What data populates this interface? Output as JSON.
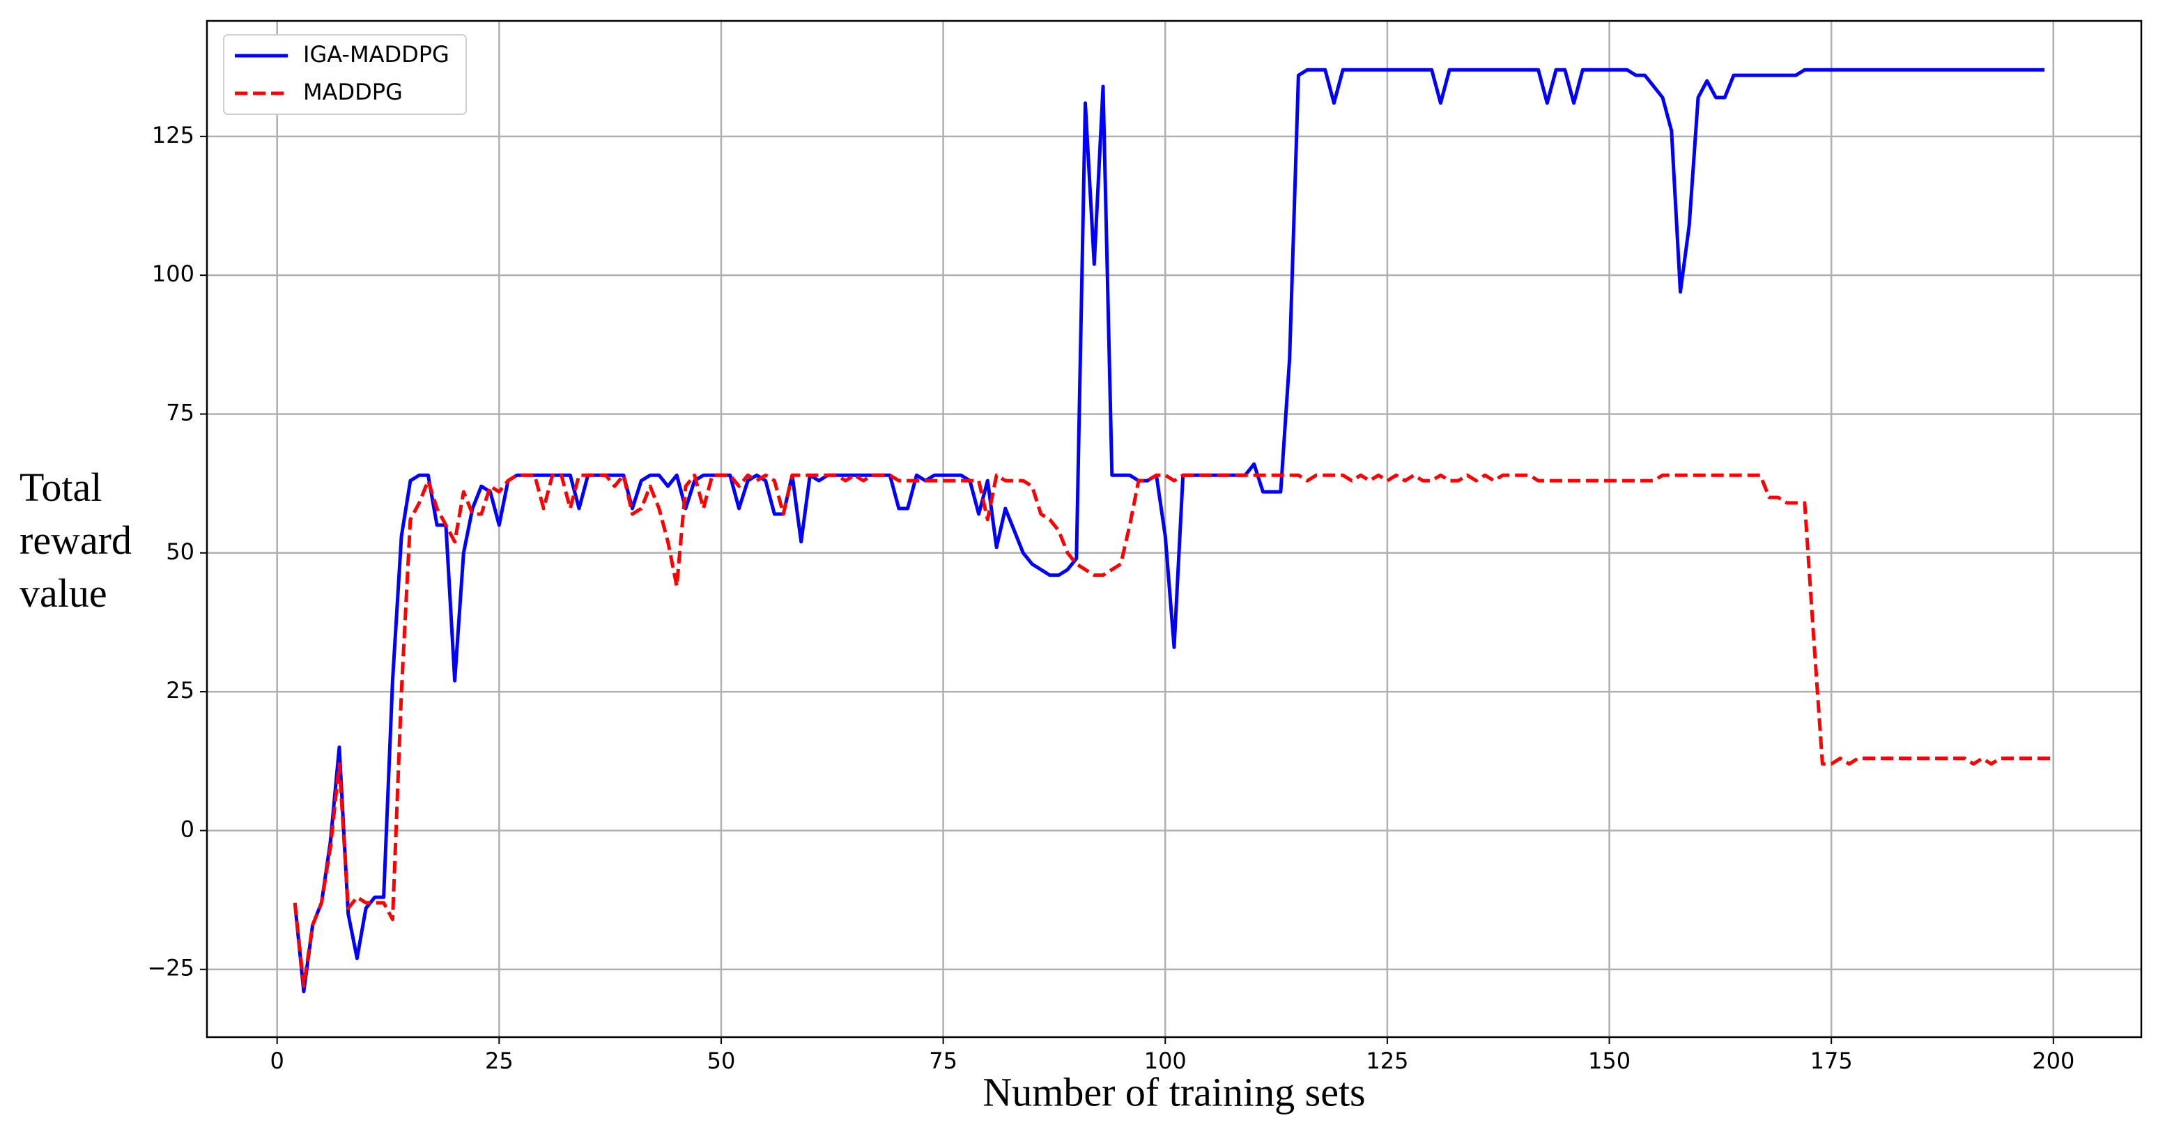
{
  "chart_data": {
    "type": "line",
    "xlabel": "Number of training sets",
    "ylabel": "Total reward value",
    "xlim": [
      -7.9,
      209.9
    ],
    "ylim": [
      -37.2,
      145.8
    ],
    "xticks": [
      0,
      25,
      50,
      75,
      100,
      125,
      150,
      175,
      200
    ],
    "yticks": [
      {
        "value": -25,
        "label": "−25"
      },
      0,
      25,
      50,
      75,
      100,
      125
    ],
    "grid": true,
    "legend": "upper left",
    "series": [
      {
        "name": "IGA-MADDPG",
        "color": "#0000ff",
        "linestyle": "solid",
        "x": [
          2,
          3,
          4,
          5,
          6,
          7,
          8,
          9,
          10,
          11,
          12,
          13,
          14,
          15,
          16,
          17,
          18,
          19,
          20,
          21,
          22,
          23,
          24,
          25,
          26,
          27,
          28,
          29,
          30,
          31,
          32,
          33,
          34,
          35,
          36,
          37,
          38,
          39,
          40,
          41,
          42,
          43,
          44,
          45,
          46,
          47,
          48,
          49,
          50,
          51,
          52,
          53,
          54,
          55,
          56,
          57,
          58,
          59,
          60,
          61,
          62,
          63,
          64,
          65,
          66,
          67,
          68,
          69,
          70,
          71,
          72,
          73,
          74,
          75,
          76,
          77,
          78,
          79,
          80,
          81,
          82,
          83,
          84,
          85,
          86,
          87,
          88,
          89,
          90,
          91,
          92,
          93,
          94,
          95,
          96,
          97,
          98,
          99,
          100,
          101,
          102,
          103,
          104,
          105,
          106,
          107,
          108,
          109,
          110,
          111,
          112,
          113,
          114,
          115,
          116,
          117,
          118,
          119,
          120,
          121,
          122,
          123,
          124,
          125,
          126,
          127,
          128,
          129,
          130,
          131,
          132,
          133,
          134,
          135,
          136,
          137,
          138,
          139,
          140,
          141,
          142,
          143,
          144,
          145,
          146,
          147,
          148,
          149,
          150,
          151,
          152,
          153,
          154,
          155,
          156,
          157,
          158,
          159,
          160,
          161,
          162,
          163,
          164,
          165,
          166,
          167,
          168,
          169,
          170,
          171,
          172,
          173,
          174,
          175,
          176,
          177,
          178,
          179,
          180,
          181,
          182,
          183,
          184,
          185,
          186,
          187,
          188,
          189,
          190,
          191,
          192,
          193,
          194,
          195,
          196,
          197,
          198,
          199
        ],
        "values": [
          -13,
          -29,
          -17,
          -13,
          -2,
          15,
          -15,
          -23,
          -14,
          -12,
          -12,
          27,
          53,
          63,
          64,
          64,
          55,
          55,
          27,
          50,
          58,
          62,
          61,
          55,
          63,
          64,
          64,
          64,
          64,
          64,
          64,
          64,
          58,
          64,
          64,
          64,
          64,
          64,
          58,
          63,
          64,
          64,
          62,
          64,
          58,
          63,
          64,
          64,
          64,
          64,
          58,
          63,
          64,
          63,
          57,
          57,
          64,
          52,
          64,
          63,
          64,
          64,
          64,
          64,
          64,
          64,
          64,
          64,
          58,
          58,
          64,
          63,
          64,
          64,
          64,
          64,
          63,
          57,
          63,
          51,
          58,
          54,
          50,
          48,
          47,
          46,
          46,
          47,
          49,
          131,
          102,
          134,
          64,
          64,
          64,
          63,
          63,
          64,
          53,
          33,
          64,
          64,
          64,
          64,
          64,
          64,
          64,
          64,
          66,
          61,
          61,
          61,
          85,
          136,
          137,
          137,
          137,
          131,
          137,
          137,
          137,
          137,
          137,
          137,
          137,
          137,
          137,
          137,
          137,
          131,
          137,
          137,
          137,
          137,
          137,
          137,
          137,
          137,
          137,
          137,
          137,
          131,
          137,
          137,
          131,
          137,
          137,
          137,
          137,
          137,
          137,
          136,
          136,
          134,
          132,
          126,
          97,
          109,
          132,
          135,
          132,
          132,
          136,
          136,
          136,
          136,
          136,
          136,
          136,
          136,
          137,
          137,
          137,
          137,
          137,
          137,
          137,
          137,
          137,
          137,
          137,
          137,
          137,
          137,
          137,
          137,
          137,
          137,
          137,
          137,
          137,
          137,
          137,
          137,
          137,
          137,
          137,
          137
        ]
      },
      {
        "name": "MADDPG",
        "color": "#ff0000",
        "linestyle": "dashed",
        "x": [
          2,
          3,
          4,
          5,
          6,
          7,
          8,
          9,
          10,
          11,
          12,
          13,
          14,
          15,
          16,
          17,
          18,
          19,
          20,
          21,
          22,
          23,
          24,
          25,
          26,
          27,
          28,
          29,
          30,
          31,
          32,
          33,
          34,
          35,
          36,
          37,
          38,
          39,
          40,
          41,
          42,
          43,
          44,
          45,
          46,
          47,
          48,
          49,
          50,
          51,
          52,
          53,
          54,
          55,
          56,
          57,
          58,
          59,
          60,
          61,
          62,
          63,
          64,
          65,
          66,
          67,
          68,
          69,
          70,
          71,
          72,
          73,
          74,
          75,
          76,
          77,
          78,
          79,
          80,
          81,
          82,
          83,
          84,
          85,
          86,
          87,
          88,
          89,
          90,
          91,
          92,
          93,
          94,
          95,
          96,
          97,
          98,
          99,
          100,
          101,
          102,
          103,
          104,
          105,
          106,
          107,
          108,
          109,
          110,
          111,
          112,
          113,
          114,
          115,
          116,
          117,
          118,
          119,
          120,
          121,
          122,
          123,
          124,
          125,
          126,
          127,
          128,
          129,
          130,
          131,
          132,
          133,
          134,
          135,
          136,
          137,
          138,
          139,
          140,
          141,
          142,
          143,
          144,
          145,
          146,
          147,
          148,
          149,
          150,
          151,
          152,
          153,
          154,
          155,
          156,
          157,
          158,
          159,
          160,
          161,
          162,
          163,
          164,
          165,
          166,
          167,
          168,
          169,
          170,
          171,
          172,
          173,
          174,
          175,
          176,
          177,
          178,
          179,
          180,
          181,
          182,
          183,
          184,
          185,
          186,
          187,
          188,
          189,
          190,
          191,
          192,
          193,
          194,
          195,
          196,
          197,
          198,
          199,
          200
        ],
        "values": [
          -13,
          -28,
          -17,
          -13,
          -3,
          12,
          -14,
          -12,
          -13,
          -13,
          -13,
          -16,
          25,
          56,
          59,
          63,
          58,
          55,
          52,
          61,
          57,
          57,
          62,
          61,
          63,
          64,
          64,
          64,
          58,
          64,
          64,
          58,
          64,
          64,
          64,
          64,
          62,
          64,
          57,
          58,
          62,
          58,
          52,
          44,
          62,
          64,
          58,
          64,
          64,
          64,
          62,
          64,
          63,
          64,
          63,
          57,
          64,
          64,
          64,
          64,
          64,
          64,
          63,
          64,
          63,
          64,
          64,
          64,
          63,
          63,
          63,
          63,
          63,
          63,
          63,
          63,
          63,
          63,
          56,
          64,
          63,
          63,
          63,
          62,
          57,
          56,
          54,
          50,
          48,
          47,
          46,
          46,
          47,
          48,
          55,
          63,
          63,
          64,
          64,
          63,
          64,
          64,
          64,
          64,
          64,
          64,
          64,
          64,
          64,
          64,
          64,
          64,
          64,
          64,
          63,
          64,
          64,
          64,
          64,
          63,
          64,
          63,
          64,
          63,
          64,
          63,
          64,
          63,
          63,
          64,
          63,
          63,
          64,
          63,
          64,
          63,
          64,
          64,
          64,
          64,
          63,
          63,
          63,
          63,
          63,
          63,
          63,
          63,
          63,
          63,
          63,
          63,
          63,
          63,
          64,
          64,
          64,
          64,
          64,
          64,
          64,
          64,
          64,
          64,
          64,
          64,
          60,
          60,
          59,
          59,
          59,
          35,
          12,
          12,
          13,
          12,
          13,
          13,
          13,
          13,
          13,
          13,
          13,
          13,
          13,
          13,
          13,
          13,
          13,
          12,
          13,
          12,
          13,
          13,
          13,
          13,
          13,
          13,
          13
        ]
      }
    ]
  }
}
